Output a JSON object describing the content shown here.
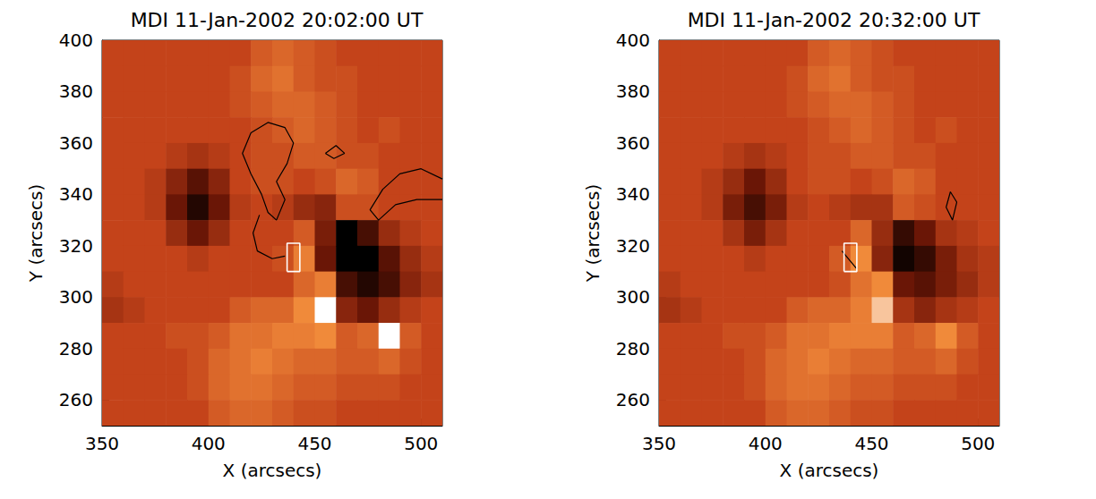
{
  "chart_data": [
    {
      "type": "heatmap",
      "title": "MDI 11-Jan-2002 20:02:00 UT",
      "xlabel": "X (arcsecs)",
      "ylabel": "Y (arcsecs)",
      "xlim": [
        350,
        510
      ],
      "ylim": [
        250,
        400
      ],
      "xticks": [
        350,
        400,
        450,
        500
      ],
      "yticks": [
        260,
        280,
        300,
        320,
        340,
        360,
        380,
        400
      ],
      "zlim": [
        -600,
        600
      ],
      "x": [
        355,
        365,
        375,
        385,
        395,
        405,
        415,
        425,
        435,
        445,
        455,
        465,
        475,
        485,
        495,
        505
      ],
      "y": [
        395,
        385,
        375,
        365,
        355,
        345,
        335,
        325,
        315,
        305,
        295,
        285,
        275,
        265,
        255
      ],
      "z": [
        [
          0,
          0,
          0,
          0,
          0,
          0,
          0,
          100,
          150,
          100,
          50,
          0,
          0,
          0,
          0,
          0
        ],
        [
          0,
          0,
          0,
          0,
          0,
          0,
          50,
          150,
          200,
          100,
          50,
          50,
          0,
          0,
          0,
          0
        ],
        [
          0,
          0,
          0,
          0,
          0,
          0,
          50,
          100,
          150,
          150,
          100,
          50,
          0,
          0,
          0,
          0
        ],
        [
          0,
          0,
          0,
          0,
          0,
          0,
          0,
          50,
          100,
          150,
          100,
          50,
          0,
          50,
          0,
          0
        ],
        [
          0,
          0,
          0,
          -50,
          -100,
          -50,
          0,
          50,
          50,
          100,
          100,
          50,
          50,
          0,
          0,
          0
        ],
        [
          0,
          0,
          -50,
          -200,
          -350,
          -200,
          0,
          50,
          50,
          0,
          50,
          150,
          100,
          0,
          0,
          0
        ],
        [
          0,
          0,
          -50,
          -300,
          -500,
          -300,
          -50,
          0,
          -50,
          -150,
          -200,
          50,
          50,
          0,
          0,
          0
        ],
        [
          0,
          0,
          0,
          -150,
          -300,
          -150,
          0,
          0,
          0,
          100,
          -250,
          -600,
          -400,
          -150,
          -50,
          0
        ],
        [
          0,
          0,
          0,
          0,
          -50,
          0,
          0,
          0,
          50,
          250,
          -300,
          -700,
          -600,
          -350,
          -150,
          -50
        ],
        [
          -50,
          0,
          0,
          0,
          0,
          0,
          0,
          0,
          0,
          150,
          250,
          -400,
          -500,
          -400,
          -200,
          -100
        ],
        [
          -100,
          -50,
          0,
          0,
          0,
          0,
          100,
          150,
          150,
          300,
          800,
          -200,
          -300,
          -150,
          -50,
          0
        ],
        [
          0,
          0,
          0,
          50,
          50,
          100,
          200,
          200,
          250,
          250,
          300,
          100,
          150,
          700,
          100,
          0
        ],
        [
          0,
          0,
          0,
          0,
          50,
          150,
          200,
          250,
          200,
          150,
          150,
          100,
          100,
          150,
          50,
          0
        ],
        [
          0,
          0,
          0,
          0,
          50,
          150,
          200,
          200,
          150,
          100,
          100,
          50,
          50,
          50,
          0,
          0
        ],
        [
          0,
          0,
          0,
          0,
          0,
          100,
          150,
          150,
          100,
          50,
          50,
          0,
          0,
          0,
          0,
          0
        ]
      ],
      "contours": [
        [
          [
            420,
            364
          ],
          [
            428,
            368
          ],
          [
            436,
            366
          ],
          [
            440,
            360
          ],
          [
            437,
            352
          ],
          [
            432,
            345
          ],
          [
            436,
            338
          ],
          [
            432,
            330
          ],
          [
            428,
            333
          ],
          [
            425,
            340
          ],
          [
            420,
            348
          ],
          [
            416,
            356
          ],
          [
            420,
            364
          ]
        ],
        [
          [
            424,
            332
          ],
          [
            421,
            325
          ],
          [
            423,
            318
          ],
          [
            430,
            315
          ],
          [
            436,
            316
          ]
        ],
        [
          [
            510,
            346
          ],
          [
            500,
            350
          ],
          [
            490,
            348
          ],
          [
            482,
            342
          ],
          [
            476,
            334
          ],
          [
            480,
            330
          ],
          [
            488,
            336
          ],
          [
            498,
            338
          ],
          [
            510,
            338
          ]
        ],
        [
          [
            455,
            356
          ],
          [
            460,
            359
          ],
          [
            464,
            356
          ],
          [
            459,
            354
          ],
          [
            455,
            356
          ]
        ]
      ],
      "box": {
        "x": [
          437,
          443
        ],
        "y": [
          310,
          321
        ]
      }
    },
    {
      "type": "heatmap",
      "title": "MDI 11-Jan-2002 20:32:00 UT",
      "xlabel": "X (arcsecs)",
      "ylabel": "Y (arcsecs)",
      "xlim": [
        350,
        510
      ],
      "ylim": [
        250,
        400
      ],
      "xticks": [
        350,
        400,
        450,
        500
      ],
      "yticks": [
        260,
        280,
        300,
        320,
        340,
        360,
        380,
        400
      ],
      "zlim": [
        -600,
        600
      ],
      "x": [
        355,
        365,
        375,
        385,
        395,
        405,
        415,
        425,
        435,
        445,
        455,
        465,
        475,
        485,
        495,
        505
      ],
      "y": [
        395,
        385,
        375,
        365,
        355,
        345,
        335,
        325,
        315,
        305,
        295,
        285,
        275,
        265,
        255
      ],
      "z": [
        [
          0,
          0,
          0,
          0,
          0,
          0,
          0,
          100,
          150,
          100,
          50,
          0,
          0,
          0,
          0,
          0
        ],
        [
          0,
          0,
          0,
          0,
          0,
          0,
          50,
          150,
          200,
          100,
          50,
          50,
          0,
          0,
          0,
          0
        ],
        [
          0,
          0,
          0,
          0,
          0,
          0,
          50,
          100,
          150,
          150,
          100,
          50,
          0,
          0,
          0,
          0
        ],
        [
          0,
          0,
          0,
          0,
          0,
          0,
          0,
          50,
          100,
          150,
          100,
          50,
          0,
          50,
          0,
          0
        ],
        [
          0,
          0,
          0,
          -50,
          -100,
          -50,
          0,
          50,
          50,
          100,
          100,
          50,
          50,
          0,
          0,
          0
        ],
        [
          0,
          0,
          -50,
          -150,
          -300,
          -150,
          0,
          50,
          50,
          0,
          50,
          150,
          100,
          0,
          0,
          0
        ],
        [
          0,
          0,
          -50,
          -250,
          -400,
          -250,
          -50,
          0,
          -50,
          -100,
          -100,
          100,
          50,
          0,
          0,
          0
        ],
        [
          0,
          0,
          0,
          -100,
          -250,
          -100,
          0,
          0,
          0,
          150,
          -150,
          -450,
          -300,
          -100,
          -50,
          0
        ],
        [
          0,
          0,
          0,
          0,
          -50,
          0,
          0,
          0,
          100,
          300,
          -200,
          -550,
          -450,
          -250,
          -100,
          -50
        ],
        [
          -50,
          0,
          0,
          0,
          0,
          0,
          0,
          0,
          50,
          200,
          300,
          -300,
          -350,
          -250,
          -150,
          -50
        ],
        [
          -100,
          -50,
          0,
          0,
          0,
          0,
          100,
          150,
          150,
          250,
          450,
          -100,
          -200,
          -100,
          -50,
          0
        ],
        [
          0,
          0,
          0,
          50,
          50,
          100,
          200,
          200,
          250,
          250,
          250,
          100,
          150,
          300,
          100,
          0
        ],
        [
          0,
          0,
          0,
          0,
          50,
          150,
          200,
          250,
          200,
          150,
          150,
          100,
          100,
          150,
          50,
          0
        ],
        [
          0,
          0,
          0,
          0,
          50,
          150,
          200,
          200,
          150,
          100,
          100,
          50,
          50,
          50,
          0,
          0
        ],
        [
          0,
          0,
          0,
          0,
          0,
          100,
          150,
          150,
          100,
          50,
          50,
          0,
          0,
          0,
          0,
          0
        ]
      ],
      "contours": [
        [
          [
            436,
            318
          ],
          [
            440,
            314
          ],
          [
            443,
            311
          ]
        ],
        [
          [
            488,
            330
          ],
          [
            485,
            335
          ],
          [
            487,
            341
          ],
          [
            490,
            337
          ],
          [
            488,
            330
          ]
        ]
      ],
      "box": {
        "x": [
          437,
          443
        ],
        "y": [
          310,
          321
        ]
      }
    }
  ]
}
